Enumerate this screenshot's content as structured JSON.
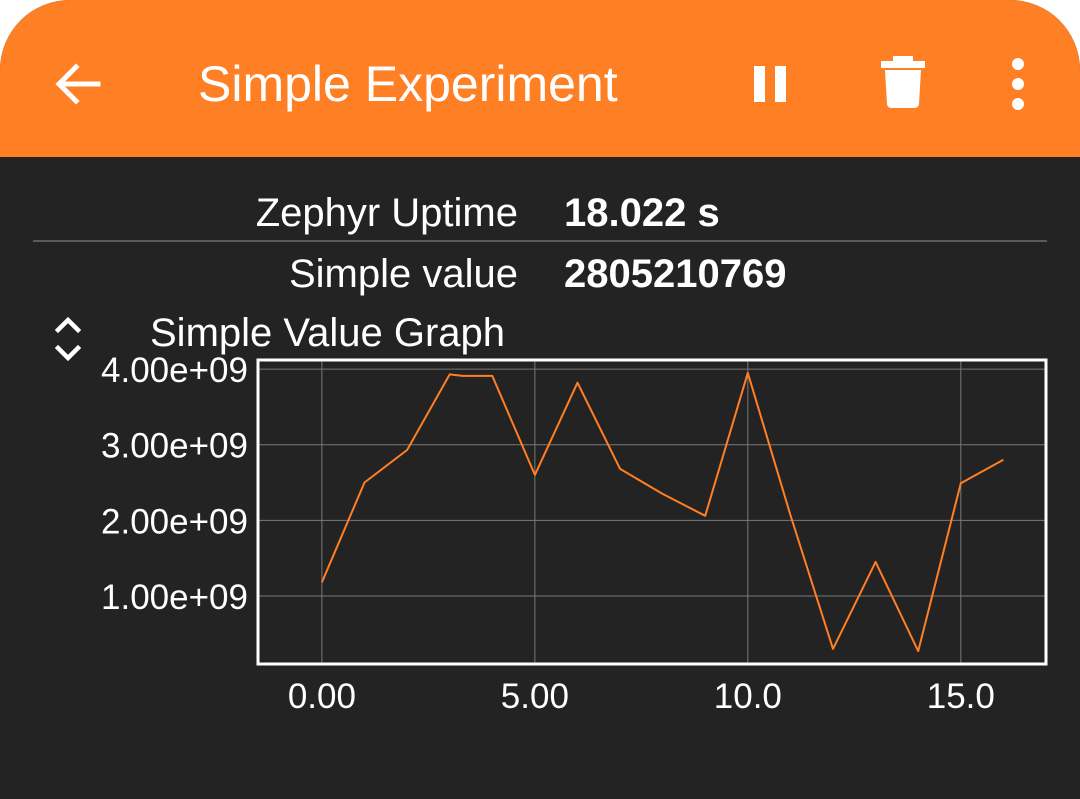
{
  "appbar": {
    "title": "Simple Experiment",
    "back_icon": "arrow-left-icon",
    "pause_icon": "pause-icon",
    "delete_icon": "trash-icon",
    "more_icon": "more-vert-icon",
    "color": "#ff7f24"
  },
  "values": {
    "uptime_label": "Zephyr Uptime",
    "uptime_value": "18.022 s",
    "simple_label": "Simple value",
    "simple_value": "2805210769"
  },
  "graph": {
    "title": "Simple Value Graph",
    "expand_icon": "expand-collapse-icon"
  },
  "chart_data": {
    "type": "line",
    "title": "Simple Value Graph",
    "xlabel": "",
    "ylabel": "",
    "x": [
      0,
      1,
      2,
      3,
      3.3,
      4,
      5,
      6,
      7,
      8,
      9,
      10,
      11,
      12,
      13,
      14,
      15,
      16
    ],
    "series": [
      {
        "values": [
          1180000000.0,
          2500000000.0,
          2930000000.0,
          3930000000.0,
          3910000000.0,
          3910000000.0,
          2600000000.0,
          3820000000.0,
          2680000000.0,
          2350000000.0,
          2060000000.0,
          3950000000.0,
          2070000000.0,
          300000000.0,
          1450000000.0,
          270000000.0,
          2490000000.0,
          2800000000.0
        ],
        "color": "#ff7f24"
      }
    ],
    "xlim": [
      -1.5,
      17.0
    ],
    "ylim": [
      100000000.0,
      4120000000.0
    ],
    "x_ticks": [
      0,
      5,
      10,
      15
    ],
    "x_tick_labels": [
      "0.00",
      "5.00",
      "10.0",
      "15.0"
    ],
    "y_ticks": [
      1000000000.0,
      2000000000.0,
      3000000000.0,
      4000000000.0
    ],
    "y_tick_labels": [
      "1.00e+09",
      "2.00e+09",
      "3.00e+09",
      "4.00e+09"
    ],
    "grid": true,
    "background": "#232323",
    "axis_color": "#ffffff",
    "grid_color": "#7a7a7a"
  }
}
